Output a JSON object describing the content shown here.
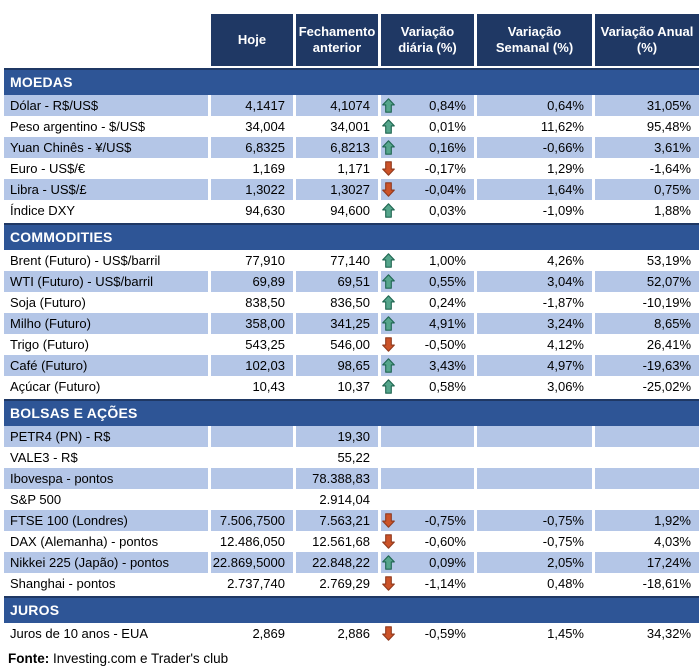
{
  "chart_data": {
    "type": "table",
    "columns": [
      "Hoje",
      "Fechamento anterior",
      "Variação diária (%)",
      "Variação Semanal (%)",
      "Variação Anual (%)"
    ],
    "sections": [
      {
        "id": "moedas",
        "title": "MOEDAS",
        "stripe": "odd",
        "rows": [
          {
            "label": "Dólar - R$/US$",
            "hoje": "4,1417",
            "fechamento": "4,1074",
            "arrow": "up",
            "diaria": "0,84%",
            "semanal": "0,64%",
            "anual": "31,05%"
          },
          {
            "label": "Peso argentino - $/US$",
            "hoje": "34,004",
            "fechamento": "34,001",
            "arrow": "up",
            "diaria": "0,01%",
            "semanal": "11,62%",
            "anual": "95,48%"
          },
          {
            "label": "Yuan Chinês - ¥/US$",
            "hoje": "6,8325",
            "fechamento": "6,8213",
            "arrow": "up",
            "diaria": "0,16%",
            "semanal": "-0,66%",
            "anual": "3,61%"
          },
          {
            "label": "Euro - US$/€",
            "hoje": "1,169",
            "fechamento": "1,171",
            "arrow": "down",
            "diaria": "-0,17%",
            "semanal": "1,29%",
            "anual": "-1,64%"
          },
          {
            "label": "Libra - US$/£",
            "hoje": "1,3022",
            "fechamento": "1,3027",
            "arrow": "down",
            "diaria": "-0,04%",
            "semanal": "1,64%",
            "anual": "0,75%"
          },
          {
            "label": "Índice DXY",
            "hoje": "94,630",
            "fechamento": "94,600",
            "arrow": "up",
            "diaria": "0,03%",
            "semanal": "-1,09%",
            "anual": "1,88%"
          }
        ]
      },
      {
        "id": "commodities",
        "title": "COMMODITIES",
        "stripe": "even",
        "rows": [
          {
            "label": "Brent (Futuro) - US$/barril",
            "hoje": "77,910",
            "fechamento": "77,140",
            "arrow": "up",
            "diaria": "1,00%",
            "semanal": "4,26%",
            "anual": "53,19%"
          },
          {
            "label": "WTI (Futuro) - US$/barril",
            "hoje": "69,89",
            "fechamento": "69,51",
            "arrow": "up",
            "diaria": "0,55%",
            "semanal": "3,04%",
            "anual": "52,07%"
          },
          {
            "label": "Soja (Futuro)",
            "hoje": "838,50",
            "fechamento": "836,50",
            "arrow": "up",
            "diaria": "0,24%",
            "semanal": "-1,87%",
            "anual": "-10,19%"
          },
          {
            "label": "Milho (Futuro)",
            "hoje": "358,00",
            "fechamento": "341,25",
            "arrow": "up",
            "diaria": "4,91%",
            "semanal": "3,24%",
            "anual": "8,65%"
          },
          {
            "label": "Trigo (Futuro)",
            "hoje": "543,25",
            "fechamento": "546,00",
            "arrow": "down",
            "diaria": "-0,50%",
            "semanal": "4,12%",
            "anual": "26,41%"
          },
          {
            "label": "Café (Futuro)",
            "hoje": "102,03",
            "fechamento": "98,65",
            "arrow": "up",
            "diaria": "3,43%",
            "semanal": "4,97%",
            "anual": "-19,63%"
          },
          {
            "label": "Açúcar (Futuro)",
            "hoje": "10,43",
            "fechamento": "10,37",
            "arrow": "up",
            "diaria": "0,58%",
            "semanal": "3,06%",
            "anual": "-25,02%"
          }
        ]
      },
      {
        "id": "bolsas-e-acoes",
        "title": "BOLSAS E AÇÕES",
        "stripe": "odd",
        "rows": [
          {
            "label": "PETR4 (PN) - R$",
            "hoje": "",
            "fechamento": "19,30",
            "arrow": null,
            "diaria": "",
            "semanal": "",
            "anual": ""
          },
          {
            "label": "VALE3 - R$",
            "hoje": "",
            "fechamento": "55,22",
            "arrow": null,
            "diaria": "",
            "semanal": "",
            "anual": ""
          },
          {
            "label": "Ibovespa - pontos",
            "hoje": "",
            "fechamento": "78.388,83",
            "arrow": null,
            "diaria": "",
            "semanal": "",
            "anual": ""
          },
          {
            "label": "S&P 500",
            "hoje": "",
            "fechamento": "2.914,04",
            "arrow": null,
            "diaria": "",
            "semanal": "",
            "anual": ""
          },
          {
            "label": "FTSE 100 (Londres)",
            "hoje": "7.506,7500",
            "fechamento": "7.563,21",
            "arrow": "down",
            "diaria": "-0,75%",
            "semanal": "-0,75%",
            "anual": "1,92%"
          },
          {
            "label": "DAX (Alemanha) - pontos",
            "hoje": "12.486,050",
            "fechamento": "12.561,68",
            "arrow": "down",
            "diaria": "-0,60%",
            "semanal": "-0,75%",
            "anual": "4,03%"
          },
          {
            "label": "Nikkei 225 (Japão) - pontos",
            "hoje": "22.869,5000",
            "fechamento": "22.848,22",
            "arrow": "up",
            "diaria": "0,09%",
            "semanal": "2,05%",
            "anual": "17,24%"
          },
          {
            "label": "Shanghai - pontos",
            "hoje": "2.737,740",
            "fechamento": "2.769,29",
            "arrow": "down",
            "diaria": "-1,14%",
            "semanal": "0,48%",
            "anual": "-18,61%"
          }
        ]
      },
      {
        "id": "juros",
        "title": "JUROS",
        "stripe": "none",
        "rows": [
          {
            "label": "Juros de 10 anos - EUA",
            "hoje": "2,869",
            "fechamento": "2,886",
            "arrow": "down",
            "diaria": "-0,59%",
            "semanal": "1,45%",
            "anual": "34,32%"
          }
        ]
      }
    ],
    "source": "Investing.com e Trader's club"
  },
  "footer": {
    "label": "Fonte:",
    "text": " Investing.com e Trader's club"
  },
  "colors": {
    "header_bg": "#1F3864",
    "section_bg": "#2E5596",
    "section_border": "#1F3864",
    "stripe": "#B4C6E7",
    "header_text": "#FFFFFF",
    "up_arrow": "#55A58B",
    "up_arrow_border": "#1E6550",
    "down_arrow": "#CC5329",
    "down_arrow_border": "#8F3A1E"
  },
  "icons": {
    "up": "up-arrow-icon",
    "down": "down-arrow-icon"
  }
}
